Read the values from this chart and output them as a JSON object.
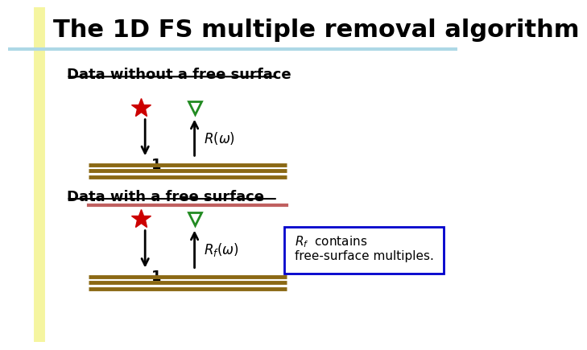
{
  "title": "The 1D FS multiple removal algorithm",
  "title_fontsize": 22,
  "bg_color": "#ffffff",
  "left_bar_color": "#f5f5a0",
  "top_bar_color": "#add8e6",
  "section1_label": "Data without a free surface",
  "section2_label": "Data with a free surface",
  "layer_color": "#8B6914",
  "free_surface_color": "#c06060",
  "arrow_color": "#000000",
  "source_color": "#cc0000",
  "receiver_color": "#228B22",
  "box_edge_color": "#0000cc",
  "box_text1": "$R_f$  contains",
  "box_text2": "free-surface multiples.",
  "r_omega_label": "$R(\\omega)$",
  "rf_omega_label": "$R_f(\\omega)$",
  "label_1": "1",
  "layer_color2": "#8B6914"
}
